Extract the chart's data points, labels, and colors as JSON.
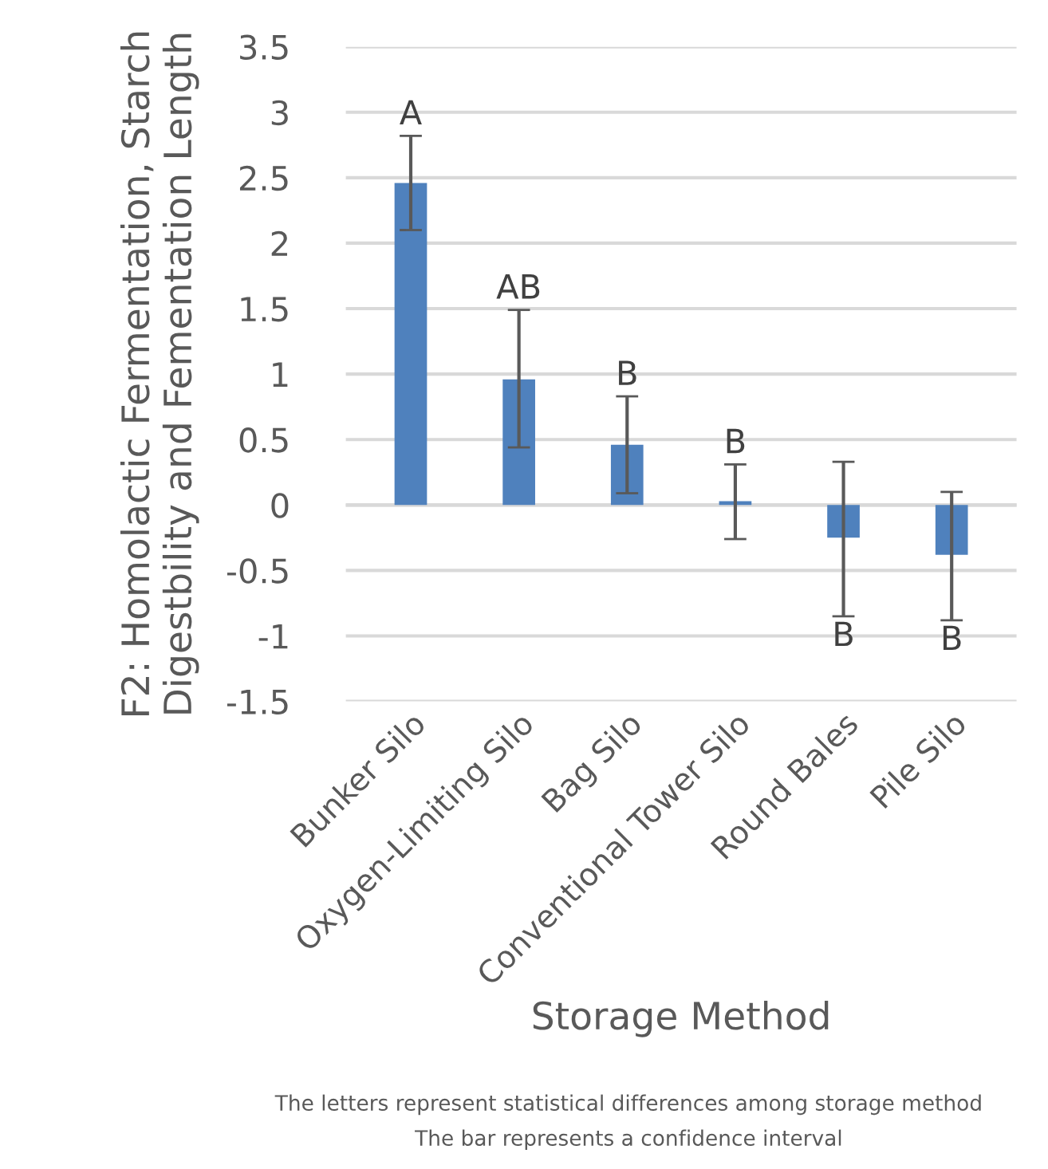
{
  "chart_data": {
    "type": "bar",
    "xlabel": "Storage Method",
    "ylabel": "F2: Homolactic Fermentation, Starch\nDigestbility and Fementation Length",
    "categories": [
      "Bunker Silo",
      "Oxygen-Limiting Silo",
      "Bag Silo",
      "Conventional Tower Silo",
      "Round Bales",
      "Pile Silo"
    ],
    "values": [
      2.46,
      0.96,
      0.46,
      0.03,
      -0.25,
      -0.38
    ],
    "errors": [
      [
        2.1,
        2.82
      ],
      [
        0.44,
        1.49
      ],
      [
        0.09,
        0.83
      ],
      [
        -0.26,
        0.31
      ],
      [
        -0.85,
        0.33
      ],
      [
        -0.88,
        0.1
      ]
    ],
    "color": "#4f81bd",
    "ylim": [
      -1.5,
      3.5
    ],
    "yticks": [
      -1.5,
      -1,
      -0.5,
      0,
      0.5,
      1,
      1.5,
      2,
      2.5,
      3,
      3.5
    ],
    "grid": "y",
    "legend": false,
    "annotations": [
      "A",
      "AB",
      "B",
      "B",
      "B",
      "B",
      "The letters represent statistical differences among storage method",
      "The bar represents a confidence interval"
    ]
  }
}
